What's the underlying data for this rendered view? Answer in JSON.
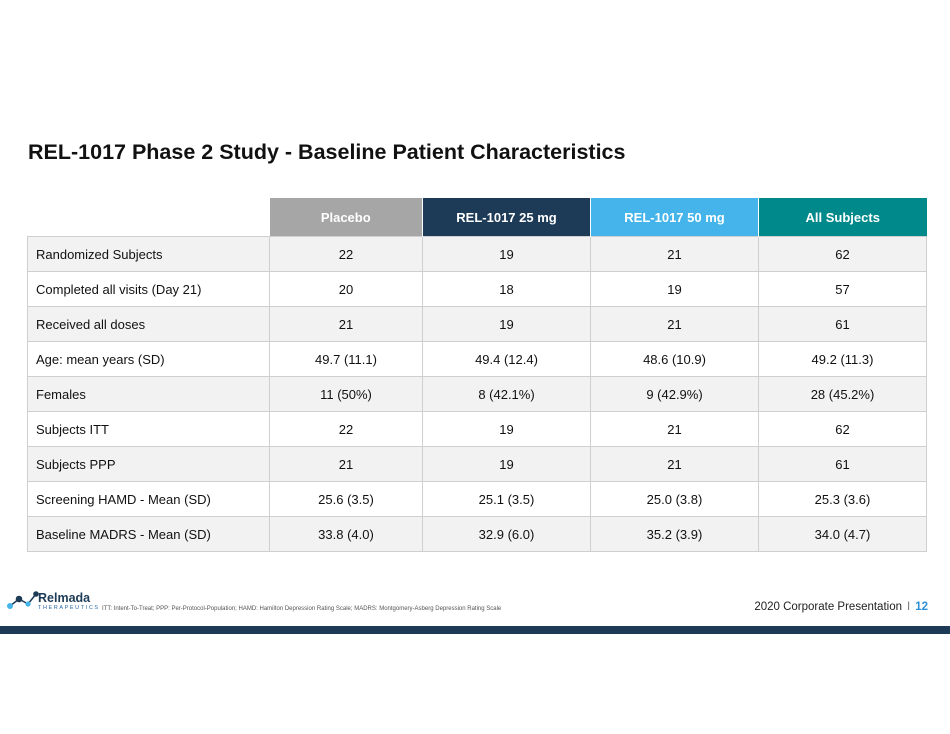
{
  "title": "REL-1017 Phase 2 Study - Baseline Patient Characteristics",
  "table": {
    "headers": [
      "Placebo",
      "REL-1017 25 mg",
      "REL-1017 50 mg",
      "All Subjects"
    ],
    "rows": [
      {
        "label": "Randomized Subjects",
        "values": [
          "22",
          "19",
          "21",
          "62"
        ]
      },
      {
        "label": "Completed all visits  (Day 21)",
        "values": [
          "20",
          "18",
          "19",
          "57"
        ]
      },
      {
        "label": "Received all doses",
        "values": [
          "21",
          "19",
          "21",
          "61"
        ]
      },
      {
        "label": "Age: mean years (SD)",
        "values": [
          "49.7 (11.1)",
          "49.4 (12.4)",
          "48.6 (10.9)",
          "49.2 (11.3)"
        ]
      },
      {
        "label": "Females",
        "values": [
          "11 (50%)",
          "8 (42.1%)",
          "9 (42.9%)",
          "28 (45.2%)"
        ]
      },
      {
        "label": "Subjects ITT",
        "values": [
          "22",
          "19",
          "21",
          "62"
        ]
      },
      {
        "label": "Subjects PPP",
        "values": [
          "21",
          "19",
          "21",
          "61"
        ]
      },
      {
        "label": "Screening HAMD - Mean (SD)",
        "values": [
          "25.6 (3.5)",
          "25.1 (3.5)",
          "25.0 (3.8)",
          "25.3 (3.6)"
        ]
      },
      {
        "label": "Baseline MADRS - Mean (SD)",
        "values": [
          "33.8 (4.0)",
          "32.9 (6.0)",
          "35.2 (3.9)",
          "34.0 (4.7)"
        ]
      }
    ]
  },
  "footer": {
    "logo_word": "Relmada",
    "logo_sub": "THERAPEUTICS",
    "note": "ITT: Intent-To-Treat; PPP: Per-Protocol-Population; HAMD: Hamilton Depression Rating Scale; MADRS: Montgomery-Asberg Depression Rating Scale",
    "presentation": "2020 Corporate Presentation",
    "separator": "I",
    "page_number": "12"
  },
  "colors": {
    "placebo_header": "#a6a6a6",
    "dose25_header": "#1d3b57",
    "dose50_header": "#45b4ea",
    "all_header": "#00898a",
    "footer_bar": "#1d3b57",
    "page_number": "#2f8fd6"
  },
  "icons": {
    "logo": "molecule-logo-icon"
  }
}
